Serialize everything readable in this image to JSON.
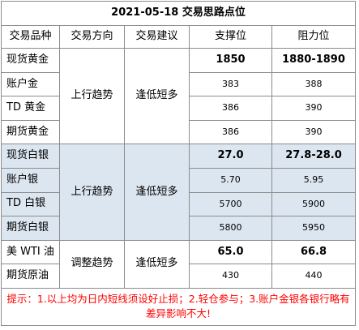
{
  "title": "2021-05-18 交易思路点位",
  "headers": [
    "交易品种",
    "交易方向",
    "交易建议",
    "支撑位",
    "阻力位"
  ],
  "groups": [
    {
      "direction": "上行趋势",
      "advice": "逢低短多",
      "rows": [
        {
          "name": "现货黄金",
          "support": "1850",
          "resistance": "1880-1890"
        },
        {
          "name": "账户金",
          "support": "383",
          "resistance": "388"
        },
        {
          "name": "TD 黄金",
          "support": "386",
          "resistance": "390"
        },
        {
          "name": "期货黄金",
          "support": "386",
          "resistance": "390"
        }
      ]
    },
    {
      "direction": "上行趋势",
      "advice": "逢低短多",
      "rows": [
        {
          "name": "现货白银",
          "support": "27.0",
          "resistance": "27.8-28.0"
        },
        {
          "name": "账户银",
          "support": "5.70",
          "resistance": "5.95"
        },
        {
          "name": "TD 白银",
          "support": "5700",
          "resistance": "5900"
        },
        {
          "name": "期货白银",
          "support": "5800",
          "resistance": "5950"
        }
      ]
    },
    {
      "direction": "调整趋势",
      "advice": "逢低短多",
      "rows": [
        {
          "name": "美 WTI 油",
          "support": "65.0",
          "resistance": "66.8"
        },
        {
          "name": "期货原油",
          "support": "430",
          "resistance": "440"
        }
      ]
    }
  ],
  "note": "提示：1.以上均为日内短线须设好止损；2.轻仓参与；3.账户金银各银行略有差异影响不大!",
  "colors": {
    "highlight": "#dce6f1",
    "note": "#ff0000",
    "border": "#8c8c8c"
  }
}
